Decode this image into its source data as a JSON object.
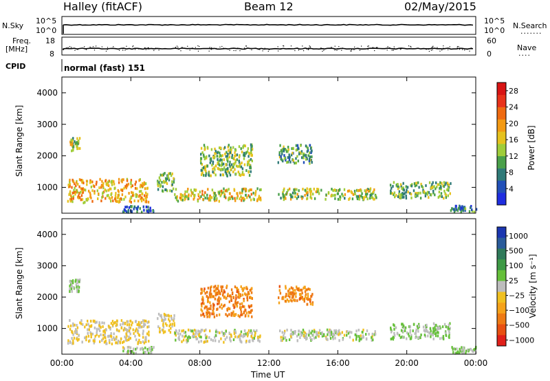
{
  "header": {
    "station": "Halley (fitACF)",
    "beam": "Beam 12",
    "date": "02/May/2015"
  },
  "small_panels": {
    "nsky_label": "N.Sky",
    "nsearch_label": "N.Search",
    "freq_label": "Freq.",
    "freq_unit": "[MHz]",
    "nave_label": "Nave",
    "cpid_label": "CPID",
    "cpid_text": "normal (fast) 151",
    "nsky_ticks": [
      "10^5",
      "10^0"
    ],
    "nsearch_ticks": [
      "10^5",
      "10^0"
    ],
    "freq_ticks": [
      "18",
      "8"
    ],
    "nave_ticks": [
      "60",
      "0"
    ]
  },
  "axes": {
    "ylabel": "Slant Range [km]",
    "xlabel": "Time UT",
    "x_ticks": [
      "00:00",
      "04:00",
      "08:00",
      "12:00",
      "16:00",
      "20:00",
      "00:00"
    ],
    "y_ticks": [
      "1000",
      "2000",
      "3000",
      "4000"
    ]
  },
  "colorbars": {
    "power": {
      "label": "Power [dB]",
      "ticks": [
        "4",
        "8",
        "12",
        "16",
        "20",
        "24",
        "28"
      ],
      "colors": [
        "#1f2ee0",
        "#2250b8",
        "#2f7a78",
        "#4aa04a",
        "#9fcd3a",
        "#e6c21e",
        "#f39a14",
        "#ef6a10",
        "#e8321a",
        "#d81414"
      ]
    },
    "velocity": {
      "label": "Velocity [m s⁻¹]",
      "ticks": [
        "1000",
        "500",
        "100",
        "25",
        "−25",
        "−100",
        "−500",
        "−1000"
      ],
      "colors": [
        "#1b36b0",
        "#2a5b9a",
        "#2f7a5a",
        "#3e9a46",
        "#66c03a",
        "#bdbdbd",
        "#f0c020",
        "#f5a21a",
        "#ee7a14",
        "#e85012",
        "#e0201a"
      ]
    }
  },
  "chart_data": [
    {
      "type": "heatmap",
      "title": "Power [dB]",
      "xlabel": "Time UT",
      "ylabel": "Slant Range [km]",
      "xlim": [
        0,
        24
      ],
      "ylim": [
        180,
        4500
      ],
      "colorbar_range": [
        0,
        30
      ],
      "regions": [
        {
          "t": [
            0.3,
            5.0
          ],
          "r": [
            550,
            1300
          ],
          "value": 18
        },
        {
          "t": [
            0.4,
            1.0
          ],
          "r": [
            2200,
            2600
          ],
          "value": 14
        },
        {
          "t": [
            3.5,
            5.3
          ],
          "r": [
            250,
            450
          ],
          "value": 6
        },
        {
          "t": [
            5.5,
            6.5
          ],
          "r": [
            900,
            1500
          ],
          "value": 12
        },
        {
          "t": [
            6.5,
            11.5
          ],
          "r": [
            600,
            1000
          ],
          "value": 16
        },
        {
          "t": [
            8.0,
            11.0
          ],
          "r": [
            1400,
            2400
          ],
          "value": 12
        },
        {
          "t": [
            12.5,
            18.2
          ],
          "r": [
            650,
            1000
          ],
          "value": 14
        },
        {
          "t": [
            12.5,
            14.5
          ],
          "r": [
            1800,
            2400
          ],
          "value": 10
        },
        {
          "t": [
            19.0,
            22.5
          ],
          "r": [
            700,
            1200
          ],
          "value": 12
        },
        {
          "t": [
            22.5,
            24.0
          ],
          "r": [
            250,
            450
          ],
          "value": 8
        }
      ]
    },
    {
      "type": "heatmap",
      "title": "Velocity [m s⁻¹]",
      "xlabel": "Time UT",
      "ylabel": "Slant Range [km]",
      "xlim": [
        0,
        24
      ],
      "ylim": [
        180,
        4500
      ],
      "colorbar_range": [
        -1000,
        1000
      ],
      "regions": [
        {
          "t": [
            0.3,
            5.0
          ],
          "r": [
            550,
            1300
          ],
          "value": -100
        },
        {
          "t": [
            0.4,
            1.0
          ],
          "r": [
            2200,
            2600
          ],
          "value": 100
        },
        {
          "t": [
            3.5,
            5.3
          ],
          "r": [
            250,
            450
          ],
          "value": 25
        },
        {
          "t": [
            5.5,
            6.5
          ],
          "r": [
            900,
            1500
          ],
          "value": -100
        },
        {
          "t": [
            6.5,
            11.5
          ],
          "r": [
            600,
            1000
          ],
          "value": -25
        },
        {
          "t": [
            8.0,
            11.0
          ],
          "r": [
            1400,
            2400
          ],
          "value": -500
        },
        {
          "t": [
            12.5,
            18.2
          ],
          "r": [
            650,
            1000
          ],
          "value": 25
        },
        {
          "t": [
            12.5,
            14.5
          ],
          "r": [
            1800,
            2400
          ],
          "value": -500
        },
        {
          "t": [
            19.0,
            22.5
          ],
          "r": [
            700,
            1200
          ],
          "value": 100
        },
        {
          "t": [
            22.5,
            24.0
          ],
          "r": [
            250,
            450
          ],
          "value": 100
        }
      ]
    }
  ]
}
